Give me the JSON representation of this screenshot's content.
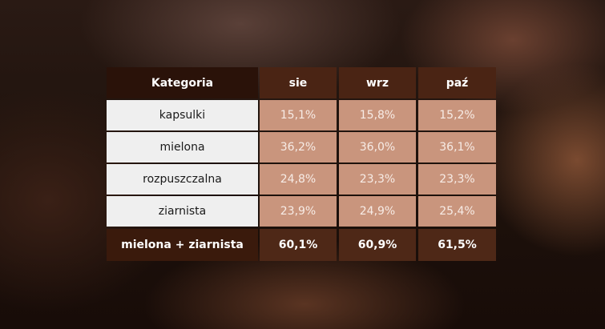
{
  "chart_data": {
    "type": "table",
    "columns": [
      "Kategoria",
      "sie",
      "wrz",
      "paź"
    ],
    "rows": [
      {
        "label": "kapsulki",
        "values": [
          "15,1%",
          "15,8%",
          "15,2%"
        ]
      },
      {
        "label": "mielona",
        "values": [
          "36,2%",
          "36,0%",
          "36,1%"
        ]
      },
      {
        "label": "rozpuszczalna",
        "values": [
          "24,8%",
          "23,3%",
          "23,3%"
        ]
      },
      {
        "label": "ziarnista",
        "values": [
          "23,9%",
          "24,9%",
          "25,4%"
        ]
      }
    ],
    "total": {
      "label": "mielona + ziarnista",
      "values": [
        "60,1%",
        "60,9%",
        "61,5%"
      ]
    }
  },
  "colors": {
    "header": "#4a2414",
    "value_cell": "#c9957d",
    "label_cell": "#efefef",
    "footer": "#4e2817"
  }
}
